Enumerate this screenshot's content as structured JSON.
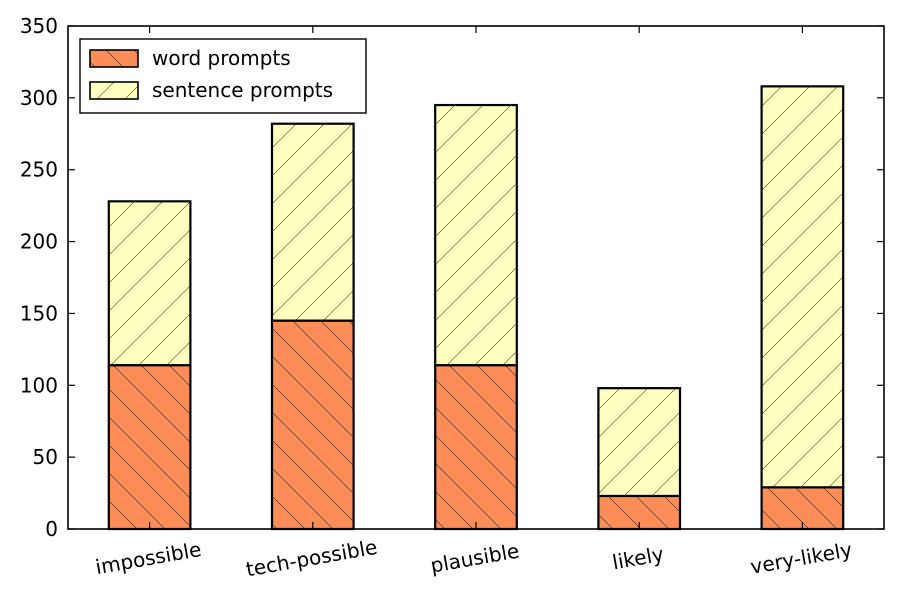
{
  "chart_data": {
    "type": "bar",
    "stacked": true,
    "categories": [
      "impossible",
      "tech-possible",
      "plausible",
      "likely",
      "very-likely"
    ],
    "series": [
      {
        "name": "word prompts",
        "values": [
          114,
          145,
          114,
          23,
          29
        ],
        "color": "#fc8d59",
        "hatch": "backslash"
      },
      {
        "name": "sentence prompts",
        "values": [
          114,
          137,
          181,
          75,
          279
        ],
        "color": "#ffffbf",
        "hatch": "slash"
      }
    ],
    "ylim": [
      0,
      350
    ],
    "yticks": [
      0,
      50,
      100,
      150,
      200,
      250,
      300,
      350
    ],
    "xlabel": "",
    "ylabel": "",
    "title": "",
    "grid": false,
    "legend_position": "top-left",
    "xtick_rotation": "slight counter-clockwise"
  }
}
